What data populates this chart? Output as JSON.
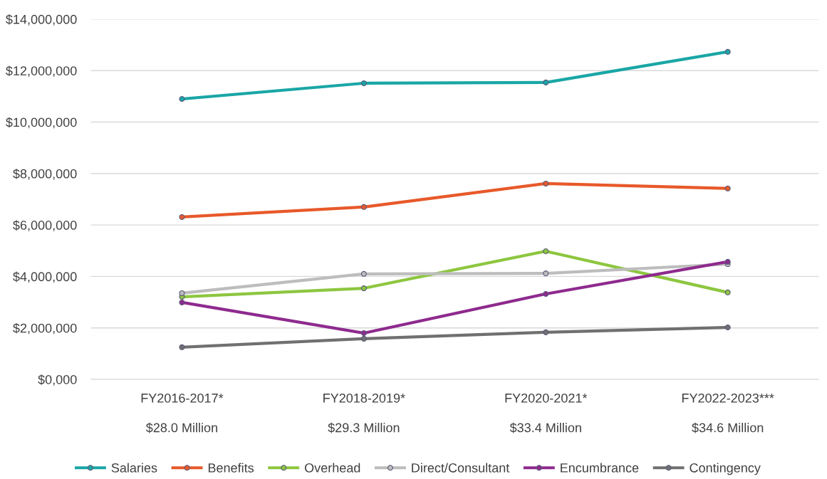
{
  "chart_data": {
    "type": "line",
    "categories": [
      "FY2016-2017*",
      "FY2018-2019*",
      "FY2020-2021*",
      "FY2022-2023***"
    ],
    "annotations": [
      "$28.0 Million",
      "$29.3 Million",
      "$33.4 Million",
      "$34.6 Million"
    ],
    "series": [
      {
        "name": "Salaries",
        "color": "#1aa6a6",
        "values": [
          10900000,
          11510000,
          11540000,
          12730000
        ]
      },
      {
        "name": "Benefits",
        "color": "#e8592a",
        "values": [
          6310000,
          6700000,
          7610000,
          7420000
        ]
      },
      {
        "name": "Overhead",
        "color": "#8dc63f",
        "values": [
          3210000,
          3540000,
          4980000,
          3380000
        ]
      },
      {
        "name": "Direct/Consultant",
        "color": "#bdbdbd",
        "values": [
          3350000,
          4100000,
          4120000,
          4480000
        ]
      },
      {
        "name": "Encumbrance",
        "color": "#8e2a8e",
        "values": [
          2990000,
          1800000,
          3320000,
          4570000
        ]
      },
      {
        "name": "Contingency",
        "color": "#707070",
        "values": [
          1250000,
          1580000,
          1830000,
          2020000
        ]
      }
    ],
    "ylim": [
      0,
      14000000
    ],
    "yticks": [
      {
        "value": 0,
        "label": "$0,000"
      },
      {
        "value": 2000000,
        "label": "$2,000,000"
      },
      {
        "value": 4000000,
        "label": "$4,000,000"
      },
      {
        "value": 6000000,
        "label": "$6,000,000"
      },
      {
        "value": 8000000,
        "label": "$8,000,000"
      },
      {
        "value": 10000000,
        "label": "$10,000,000"
      },
      {
        "value": 12000000,
        "label": "$12,000,000"
      },
      {
        "value": 14000000,
        "label": "$14,000,000"
      }
    ],
    "grid": "y",
    "legend": "bottom",
    "marker": "circle",
    "line_style": "solid"
  }
}
